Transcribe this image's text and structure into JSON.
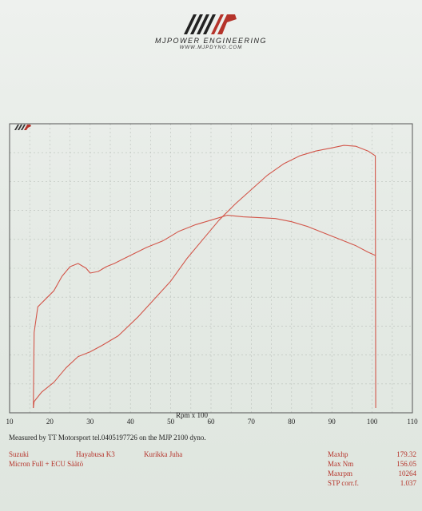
{
  "header": {
    "brand_name": "MJPower Engineering",
    "brand_url": "www.mjpdyno.com",
    "logo_lettering": "MJP"
  },
  "footer": {
    "measured_line": "Measured by TT Motorsport tel.0405197726 on the MJP 2100 dyno.",
    "make": "Suzuki",
    "model": "Hayabusa K3",
    "operator": "Kurikka Juha",
    "setup": "Micron Full + ECU Säätö",
    "stats": [
      {
        "label": "Maxhp",
        "value": "179.32"
      },
      {
        "label": "Max Nm",
        "value": "156.05"
      },
      {
        "label": "Maxrpm",
        "value": "10264"
      },
      {
        "label": "STP corr.f.",
        "value": "1.037"
      }
    ]
  },
  "chart_data": {
    "type": "line",
    "xlabel": "Rpm x 100",
    "ylabel": "",
    "xlim": [
      10,
      110
    ],
    "x_ticks": [
      "10",
      "20",
      "30",
      "40",
      "50",
      "60",
      "70",
      "80",
      "90",
      "100",
      "110"
    ],
    "grid": true,
    "line_color": "#d2564a",
    "series": [
      {
        "x": [
          15.9,
          16.1,
          17,
          19,
          21,
          23,
          25,
          27,
          29,
          30,
          32,
          34,
          36,
          38,
          40,
          44,
          48,
          50,
          52,
          56,
          60,
          64,
          68,
          72,
          76,
          80,
          84,
          88,
          92,
          96,
          99,
          100.8
        ],
        "y": [
          0.03,
          0.5,
          0.66,
          0.71,
          0.76,
          0.85,
          0.91,
          0.93,
          0.9,
          0.87,
          0.88,
          0.91,
          0.93,
          0.955,
          0.98,
          1.03,
          1.07,
          1.1,
          1.13,
          1.17,
          1.2,
          1.23,
          1.22,
          1.215,
          1.21,
          1.19,
          1.16,
          1.12,
          1.08,
          1.04,
          1.0,
          0.98
        ]
      },
      {
        "x": [
          15.9,
          16.1,
          18,
          21,
          24,
          27,
          30,
          33,
          37,
          42,
          46,
          50,
          54,
          58,
          62,
          66,
          70,
          74,
          78,
          82,
          86,
          90,
          93,
          96,
          99,
          100.8,
          100.9
        ],
        "y": [
          0.03,
          0.07,
          0.13,
          0.19,
          0.28,
          0.35,
          0.38,
          0.42,
          0.48,
          0.6,
          0.71,
          0.82,
          0.96,
          1.08,
          1.2,
          1.3,
          1.39,
          1.48,
          1.55,
          1.6,
          1.63,
          1.65,
          1.665,
          1.66,
          1.63,
          1.6,
          0.03
        ]
      }
    ]
  }
}
